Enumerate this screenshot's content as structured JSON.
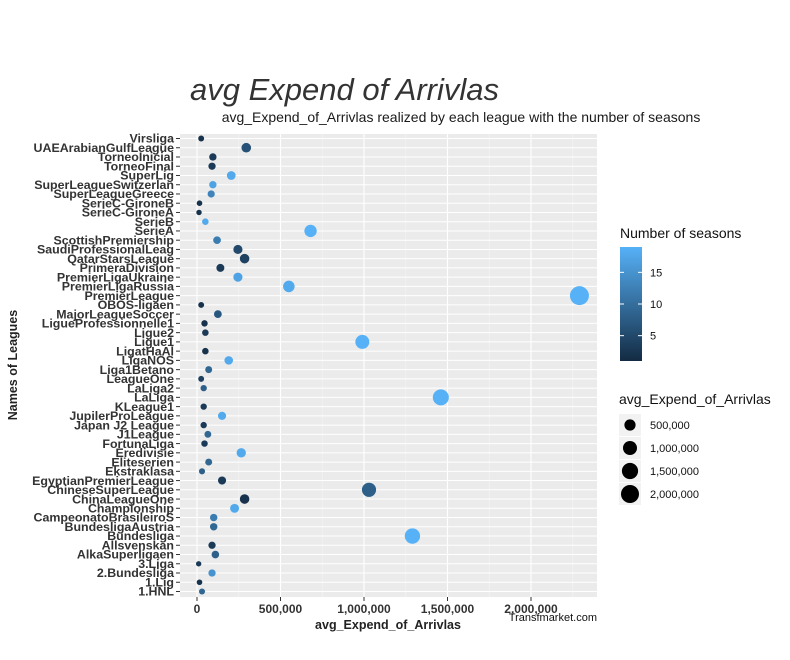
{
  "chart_data": {
    "type": "scatter",
    "title": "avg Expend of Arrivlas",
    "subtitle": "avg_Expend_of_Arrivlas realized by each league with the number of seasons",
    "xlabel": "avg_Expend_of_Arrivlas",
    "ylabel": "Names of Leagues",
    "caption": "Transfmarket.com",
    "xlim": [
      -80000,
      2400000
    ],
    "x_ticks": [
      0,
      500000,
      1000000,
      1500000,
      2000000
    ],
    "x_tick_labels": [
      "0",
      "500,000",
      "1,000,000",
      "1,500,000",
      "2,000,000"
    ],
    "grid": true,
    "legend_position": "right",
    "color_legend": {
      "title": "Number of seasons",
      "breaks": [
        5,
        10,
        15
      ],
      "range": [
        1,
        19
      ],
      "low_color": "#132b43",
      "high_color": "#56b1f7"
    },
    "size_legend": {
      "title": "avg_Expend_of_Arrivlas",
      "breaks": [
        500000,
        1000000,
        1500000,
        2000000
      ],
      "labels": [
        "500,000",
        "1,000,000",
        "1,500,000",
        "2,000,000"
      ]
    },
    "points": [
      {
        "league": "Virsliga",
        "value": 25000,
        "seasons": 2
      },
      {
        "league": "UAEArabianGulfLeague",
        "value": 295000,
        "seasons": 6
      },
      {
        "league": "TorneoInicial",
        "value": 95000,
        "seasons": 3
      },
      {
        "league": "TorneoFinal",
        "value": 90000,
        "seasons": 3
      },
      {
        "league": "SuperLig",
        "value": 205000,
        "seasons": 18
      },
      {
        "league": "SuperLeagueSwitzerlan",
        "value": 95000,
        "seasons": 17
      },
      {
        "league": "SuperLeagueGreece",
        "value": 85000,
        "seasons": 13
      },
      {
        "league": "SerieC-GironeB",
        "value": 15000,
        "seasons": 2
      },
      {
        "league": "SerieC-GironeA",
        "value": 12000,
        "seasons": 2
      },
      {
        "league": "SerieB",
        "value": 50000,
        "seasons": 18
      },
      {
        "league": "SerieA",
        "value": 680000,
        "seasons": 19
      },
      {
        "league": "ScottishPremiership",
        "value": 120000,
        "seasons": 12
      },
      {
        "league": "SaudiProfessionalLeag",
        "value": 245000,
        "seasons": 5
      },
      {
        "league": "QatarStarsLeague",
        "value": 285000,
        "seasons": 4
      },
      {
        "league": "PrimeraDivision",
        "value": 140000,
        "seasons": 3
      },
      {
        "league": "PremierLigaUkraine",
        "value": 245000,
        "seasons": 17
      },
      {
        "league": "PremierLigaRussia",
        "value": 550000,
        "seasons": 18
      },
      {
        "league": "PremierLeague",
        "value": 2290000,
        "seasons": 19
      },
      {
        "league": "OBOS-ligaen",
        "value": 25000,
        "seasons": 2
      },
      {
        "league": "MajorLeagueSoccer",
        "value": 125000,
        "seasons": 7
      },
      {
        "league": "LigueProfessionnelle1",
        "value": 45000,
        "seasons": 2
      },
      {
        "league": "Ligue2",
        "value": 50000,
        "seasons": 3
      },
      {
        "league": "Ligue1",
        "value": 990000,
        "seasons": 19
      },
      {
        "league": "LigatHaAl",
        "value": 50000,
        "seasons": 2
      },
      {
        "league": "LigaNOS",
        "value": 190000,
        "seasons": 18
      },
      {
        "league": "Liga1Betano",
        "value": 70000,
        "seasons": 9
      },
      {
        "league": "LeagueOne",
        "value": 25000,
        "seasons": 4
      },
      {
        "league": "LaLiga2",
        "value": 40000,
        "seasons": 8
      },
      {
        "league": "LaLiga",
        "value": 1460000,
        "seasons": 19
      },
      {
        "league": "KLeague1",
        "value": 40000,
        "seasons": 3
      },
      {
        "league": "JupilerProLeague",
        "value": 150000,
        "seasons": 18
      },
      {
        "league": "Japan J2 League",
        "value": 40000,
        "seasons": 3
      },
      {
        "league": "J1League",
        "value": 65000,
        "seasons": 9
      },
      {
        "league": "FortunaLiga",
        "value": 45000,
        "seasons": 3
      },
      {
        "league": "Eredivisie",
        "value": 265000,
        "seasons": 18
      },
      {
        "league": "Eliteserien",
        "value": 70000,
        "seasons": 9
      },
      {
        "league": "Ekstraklasa",
        "value": 30000,
        "seasons": 8
      },
      {
        "league": "EgyptianPremierLeague",
        "value": 150000,
        "seasons": 3
      },
      {
        "league": "ChineseSuperLeague",
        "value": 1030000,
        "seasons": 8
      },
      {
        "league": "ChinaLeagueOne",
        "value": 285000,
        "seasons": 2
      },
      {
        "league": "Championship",
        "value": 225000,
        "seasons": 18
      },
      {
        "league": "CampeonatoBrasileiroS",
        "value": 100000,
        "seasons": 12
      },
      {
        "league": "BundesligaAustria",
        "value": 100000,
        "seasons": 9
      },
      {
        "league": "Bundesliga",
        "value": 1290000,
        "seasons": 19
      },
      {
        "league": "Allsvenskan",
        "value": 90000,
        "seasons": 3
      },
      {
        "league": "AlkaSuperligaen",
        "value": 110000,
        "seasons": 8
      },
      {
        "league": "3.Liga",
        "value": 10000,
        "seasons": 3
      },
      {
        "league": "2.Bundesliga",
        "value": 90000,
        "seasons": 15
      },
      {
        "league": "1.Lig",
        "value": 15000,
        "seasons": 2
      },
      {
        "league": "1.HNL",
        "value": 30000,
        "seasons": 9
      }
    ]
  }
}
